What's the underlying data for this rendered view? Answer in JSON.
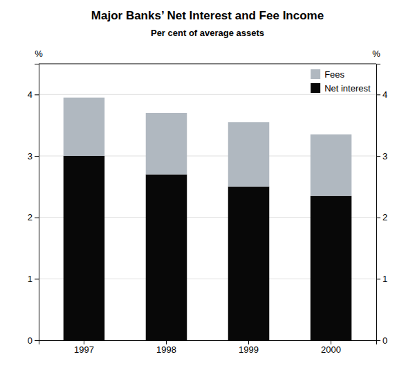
{
  "chart_data": {
    "type": "bar",
    "stacked": true,
    "title": "Major Banks’ Net Interest and Fee Income",
    "subtitle": "Per cent of average assets",
    "y_label": "%",
    "y2_label": "%",
    "categories": [
      "1997",
      "1998",
      "1999",
      "2000"
    ],
    "series": [
      {
        "name": "Net interest",
        "color": "#080808",
        "values": [
          3.0,
          2.7,
          2.5,
          2.35
        ]
      },
      {
        "name": "Fees",
        "color": "#b0b8c0",
        "values": [
          0.95,
          1.0,
          1.05,
          1.0
        ]
      }
    ],
    "ylim": [
      0,
      4.5
    ],
    "yticks": [
      0,
      1,
      2,
      3,
      4
    ],
    "y2lim": [
      0,
      4.5
    ],
    "y2ticks": [
      0,
      1,
      2,
      3,
      4
    ],
    "grid": true,
    "legend": "upper right"
  }
}
